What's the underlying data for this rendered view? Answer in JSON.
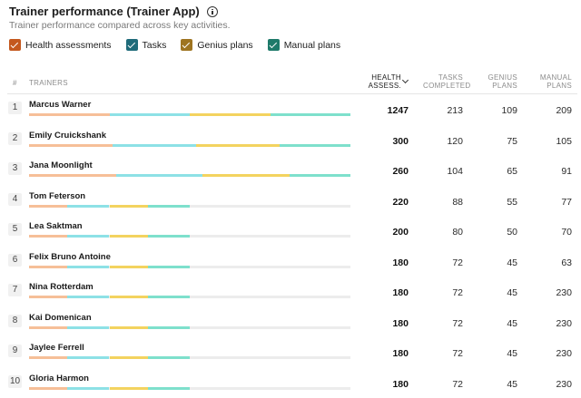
{
  "header": {
    "title": "Trainer performance (Trainer App)",
    "subtitle": "Trainer performance compared across key activities."
  },
  "legend": [
    {
      "label": "Health assessments",
      "color": "#c4581e"
    },
    {
      "label": "Tasks",
      "color": "#1f6b7a"
    },
    {
      "label": "Genius plans",
      "color": "#9e7420"
    },
    {
      "label": "Manual plans",
      "color": "#1e7a6a"
    }
  ],
  "colors": {
    "health": "#f6bf98",
    "tasks": "#8de1e6",
    "genius": "#f3d35f",
    "manual": "#7ee0cc"
  },
  "table": {
    "headers": {
      "num": "#",
      "trainers": "TRAINERS",
      "health": "HEALTH ASSESS.",
      "tasks": "TASKS COMPLETED",
      "genius": "GENIUS PLANS",
      "manual": "MANUAL PLANS"
    },
    "rows": [
      {
        "rank": "1",
        "name": "Marcus Warner",
        "health": 1247,
        "tasks": 213,
        "genius": 109,
        "manual": 209
      },
      {
        "rank": "2",
        "name": "Emily Cruickshank",
        "health": 300,
        "tasks": 120,
        "genius": 75,
        "manual": 105
      },
      {
        "rank": "3",
        "name": "Jana Moonlight",
        "health": 260,
        "tasks": 104,
        "genius": 65,
        "manual": 91
      },
      {
        "rank": "4",
        "name": "Tom Feterson",
        "health": 220,
        "tasks": 88,
        "genius": 55,
        "manual": 77
      },
      {
        "rank": "5",
        "name": "Lea Saktman",
        "health": 200,
        "tasks": 80,
        "genius": 50,
        "manual": 70
      },
      {
        "rank": "6",
        "name": "Felix Bruno Antoine",
        "health": 180,
        "tasks": 72,
        "genius": 45,
        "manual": 63
      },
      {
        "rank": "7",
        "name": "Nina Rotterdam",
        "health": 180,
        "tasks": 72,
        "genius": 45,
        "manual": 230
      },
      {
        "rank": "8",
        "name": "Kai Domenican",
        "health": 180,
        "tasks": 72,
        "genius": 45,
        "manual": 230
      },
      {
        "rank": "9",
        "name": "Jaylee Ferrell",
        "health": 180,
        "tasks": 72,
        "genius": 45,
        "manual": 230
      },
      {
        "rank": "10",
        "name": "Gloria Harmon",
        "health": 180,
        "tasks": 72,
        "genius": 45,
        "manual": 230
      }
    ],
    "bars": [
      {
        "health": 0.25,
        "tasks": 0.25,
        "genius": 0.25,
        "manual": 0.25
      },
      {
        "health": 0.26,
        "tasks": 0.26,
        "genius": 0.26,
        "manual": 0.22
      },
      {
        "health": 0.27,
        "tasks": 0.27,
        "genius": 0.27,
        "manual": 0.19
      },
      {
        "health": 0.12,
        "tasks": 0.13,
        "genius": 0.12,
        "manual": 0.13
      },
      {
        "health": 0.12,
        "tasks": 0.13,
        "genius": 0.12,
        "manual": 0.13
      },
      {
        "health": 0.12,
        "tasks": 0.13,
        "genius": 0.12,
        "manual": 0.13
      },
      {
        "health": 0.12,
        "tasks": 0.13,
        "genius": 0.12,
        "manual": 0.13
      },
      {
        "health": 0.12,
        "tasks": 0.13,
        "genius": 0.12,
        "manual": 0.13
      },
      {
        "health": 0.12,
        "tasks": 0.13,
        "genius": 0.12,
        "manual": 0.13
      },
      {
        "health": 0.12,
        "tasks": 0.13,
        "genius": 0.12,
        "manual": 0.13
      }
    ]
  }
}
